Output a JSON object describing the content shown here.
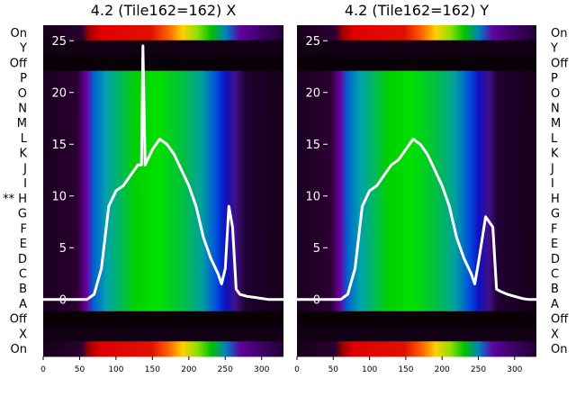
{
  "chart_data": [
    {
      "type": "heatmap",
      "title": "4.2 (Tile162=162) X",
      "row_labels": [
        "On",
        "Y",
        "Off",
        "P",
        "O",
        "N",
        "M",
        "L",
        "K",
        "J",
        "I",
        "** H",
        "G",
        "F",
        "E",
        "D",
        "C",
        "B",
        "A",
        "Off",
        "X",
        "On"
      ],
      "x_ticks": [
        0,
        50,
        100,
        150,
        200,
        250,
        300
      ],
      "y_ticks": [
        0,
        5,
        10,
        15,
        20,
        25
      ],
      "xlim": [
        0,
        330
      ],
      "ylim": [
        -5.5,
        26.5
      ],
      "colormap": "nipy_spectral",
      "overlay_line_color": "#ffffff",
      "overlay_series": {
        "x": [
          0,
          60,
          70,
          80,
          90,
          100,
          110,
          120,
          130,
          135,
          137,
          140,
          150,
          160,
          170,
          180,
          190,
          200,
          210,
          220,
          230,
          240,
          245,
          250,
          255,
          260,
          265,
          270,
          280,
          290,
          300,
          310,
          320,
          330
        ],
        "y": [
          0,
          0,
          0.5,
          3,
          9,
          10.5,
          11,
          12,
          13,
          13,
          24.5,
          13,
          14.5,
          15.5,
          15,
          14,
          12.5,
          11,
          9,
          6,
          4,
          2.5,
          1.5,
          3,
          9,
          7,
          1,
          0.5,
          0.3,
          0.2,
          0.1,
          0,
          0,
          0
        ]
      }
    },
    {
      "type": "heatmap",
      "title": "4.2 (Tile162=162) Y",
      "row_labels": [
        "On",
        "Y",
        "Off",
        "P",
        "O",
        "N",
        "M",
        "L",
        "K",
        "J",
        "I",
        "H",
        "G",
        "F",
        "E",
        "D",
        "C",
        "B",
        "A",
        "Off",
        "X",
        "On"
      ],
      "x_ticks": [
        0,
        50,
        100,
        150,
        200,
        250,
        300
      ],
      "y_ticks": [
        0,
        5,
        10,
        15,
        20,
        25
      ],
      "xlim": [
        0,
        330
      ],
      "ylim": [
        -5.5,
        26.5
      ],
      "colormap": "nipy_spectral",
      "overlay_line_color": "#ffffff",
      "overlay_series": {
        "x": [
          0,
          60,
          70,
          80,
          90,
          100,
          110,
          120,
          130,
          140,
          150,
          160,
          170,
          180,
          190,
          200,
          210,
          220,
          230,
          240,
          245,
          250,
          260,
          270,
          275,
          280,
          290,
          300,
          310,
          320,
          330
        ],
        "y": [
          0,
          0,
          0.5,
          3,
          9,
          10.5,
          11,
          12,
          13,
          13.5,
          14.5,
          15.5,
          15,
          14,
          12.5,
          11,
          9,
          6,
          4,
          2.5,
          1.5,
          3.5,
          8,
          7,
          1,
          0.8,
          0.5,
          0.3,
          0.1,
          0,
          0
        ]
      }
    }
  ]
}
